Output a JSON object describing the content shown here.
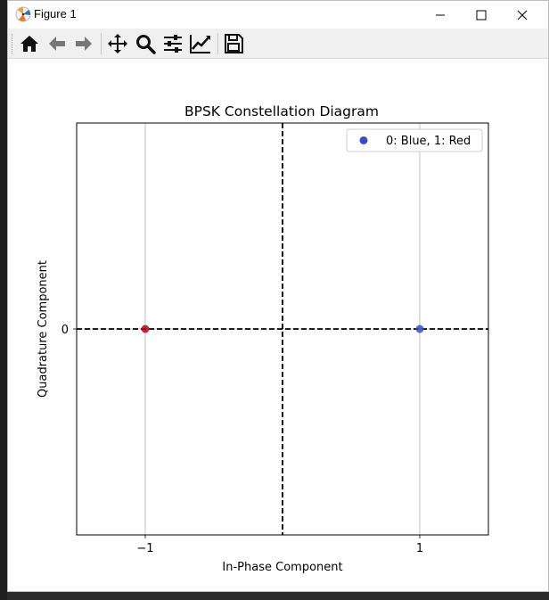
{
  "window": {
    "title": "Figure 1",
    "controls": [
      "minimize",
      "maximize",
      "close"
    ]
  },
  "toolbar": {
    "buttons": [
      {
        "name": "home-icon",
        "tooltip": "Reset original view"
      },
      {
        "name": "back-icon",
        "tooltip": "Back to previous view"
      },
      {
        "name": "forward-icon",
        "tooltip": "Forward to next view"
      },
      {
        "name": "pan-icon",
        "tooltip": "Pan axes"
      },
      {
        "name": "zoom-icon",
        "tooltip": "Zoom to rectangle"
      },
      {
        "name": "subplots-icon",
        "tooltip": "Configure subplots"
      },
      {
        "name": "edit-axis-icon",
        "tooltip": "Edit axis"
      },
      {
        "name": "save-icon",
        "tooltip": "Save the figure"
      }
    ]
  },
  "chart_data": {
    "type": "scatter",
    "title": "BPSK Constellation Diagram",
    "xlabel": "In-Phase Component",
    "ylabel": "Quadrature Component",
    "xlim": [
      -1.5,
      1.5
    ],
    "ylim": [
      -1.5,
      1.5
    ],
    "xticks": [
      {
        "value": -1,
        "label": "−1"
      },
      {
        "value": 1,
        "label": "1"
      }
    ],
    "yticks": [
      {
        "value": 0,
        "label": "0"
      }
    ],
    "grid": true,
    "reference_lines": {
      "x": 0,
      "y": 0,
      "style": "dashed",
      "color": "#000000"
    },
    "legend": {
      "label": "0: Blue, 1: Red",
      "position": "top-right",
      "marker_color": "#3b4cc0"
    },
    "points": [
      {
        "x": -1,
        "y": 0,
        "bit": 1,
        "color": "#b40426"
      },
      {
        "x": 1,
        "y": 0,
        "bit": 0,
        "color": "#3b4cc0"
      }
    ]
  }
}
